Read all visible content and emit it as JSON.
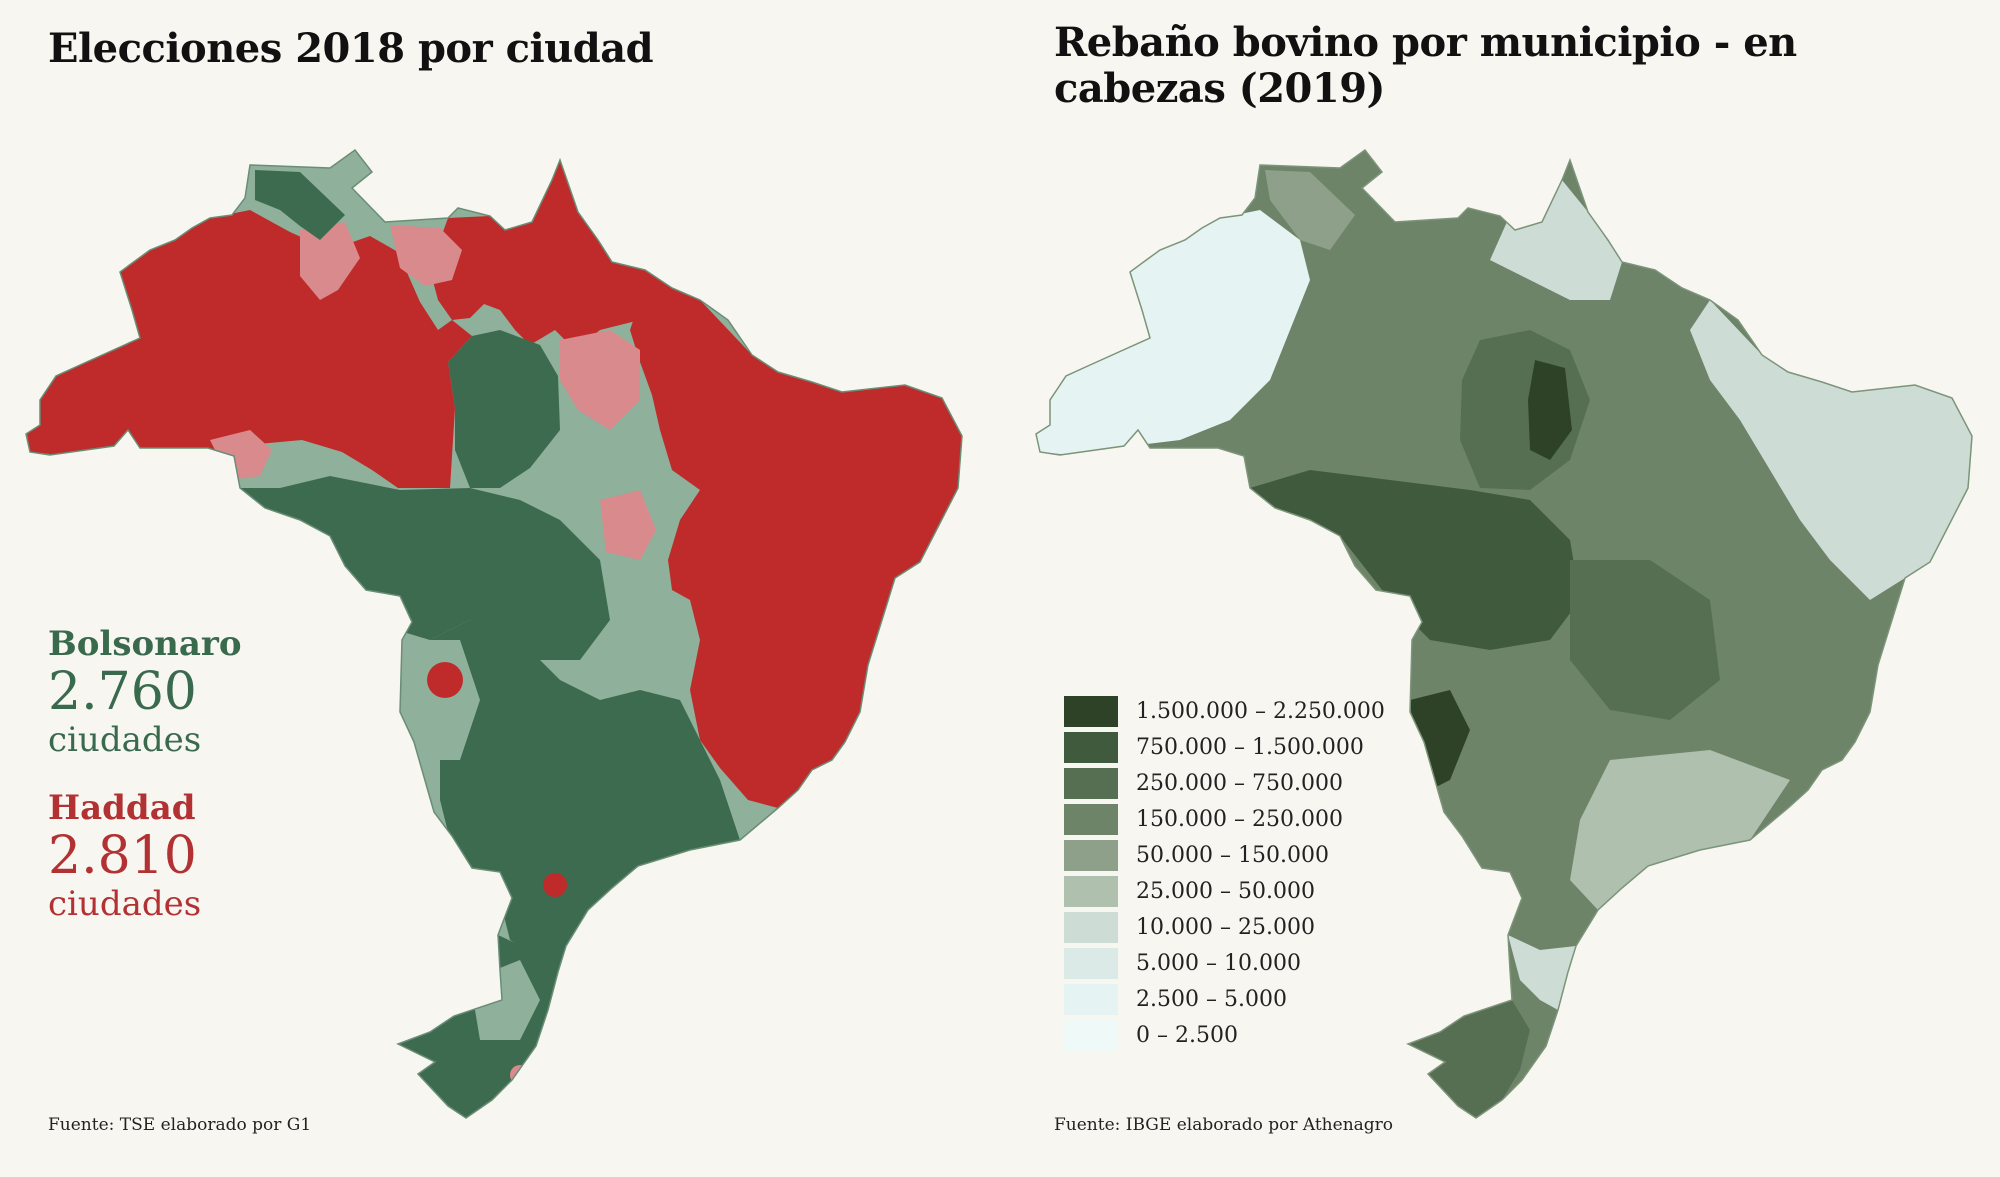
{
  "left": {
    "title": "Elecciones 2018 por ciudad",
    "source": "Fuente: TSE elaborado por G1",
    "colors": {
      "bolsonaro_strong": "#3d6b50",
      "bolsonaro_light": "#8fb09a",
      "haddad_strong": "#bf2b2b",
      "haddad_light": "#d98a8c"
    },
    "bolsonaro": {
      "name": "Bolsonaro",
      "count": "2.760",
      "unit": "ciudades"
    },
    "haddad": {
      "name": "Haddad",
      "count": "2.810",
      "unit": "ciudades"
    }
  },
  "right": {
    "title": "Rebaño bovino por municipio - en cabezas (2019)",
    "source": "Fuente: IBGE elaborado por Athenagro",
    "legend": [
      {
        "label": "1.500.000 – 2.250.000",
        "color": "#2d4227"
      },
      {
        "label": "750.000 – 1.500.000",
        "color": "#3f5a3c"
      },
      {
        "label": "250.000 – 750.000",
        "color": "#566f53"
      },
      {
        "label": "150.000 – 250.000",
        "color": "#6e8469"
      },
      {
        "label": "50.000 – 150.000",
        "color": "#8ea08a"
      },
      {
        "label": "25.000 – 50.000",
        "color": "#afc0ae"
      },
      {
        "label": "10.000 – 25.000",
        "color": "#cdddd5"
      },
      {
        "label": "5.000 – 10.000",
        "color": "#dbeae6"
      },
      {
        "label": "2.500 – 5.000",
        "color": "#e5f4f2"
      },
      {
        "label": "0 – 2.500",
        "color": "#eef9f8"
      }
    ]
  }
}
